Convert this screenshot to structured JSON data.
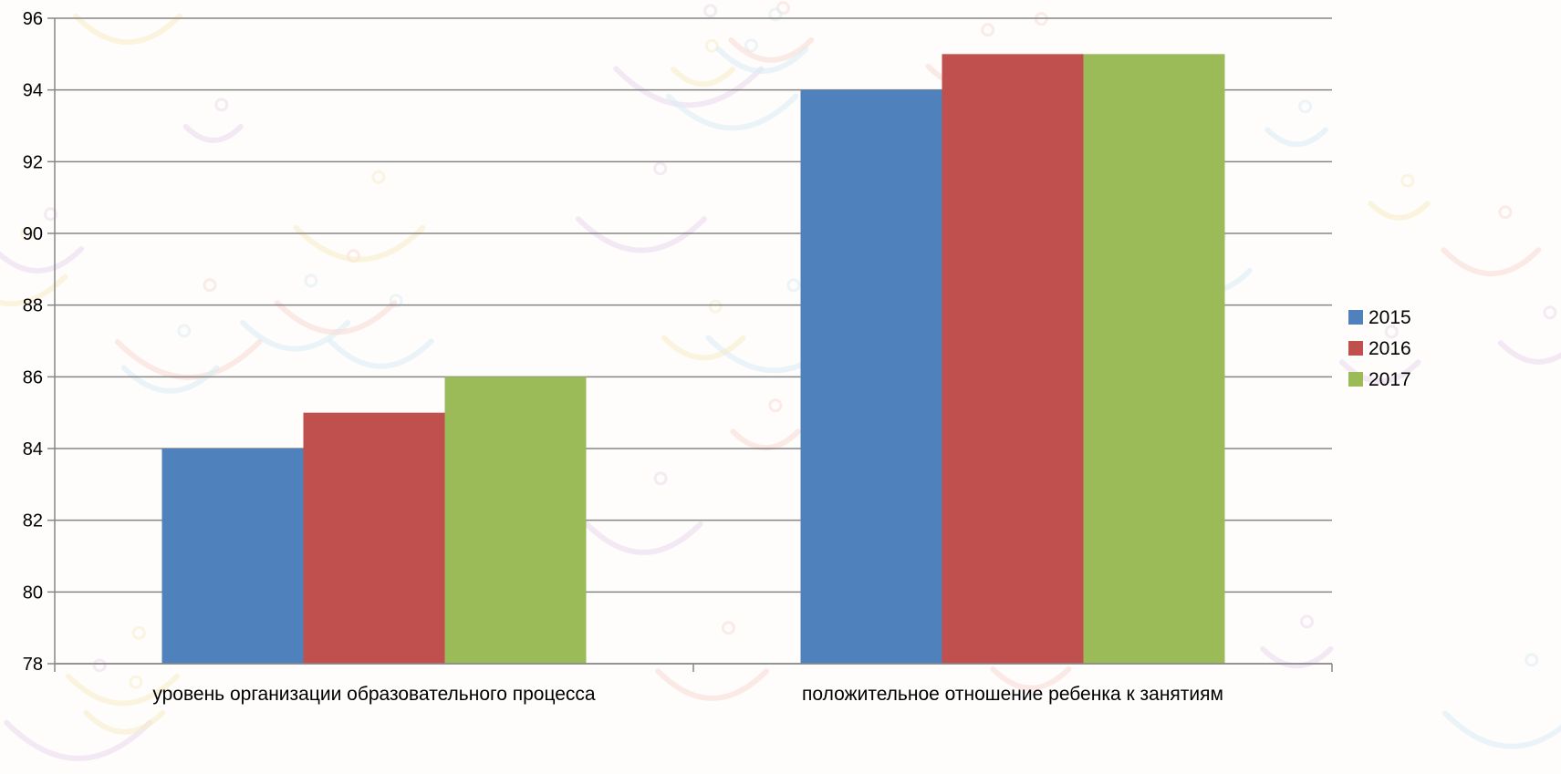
{
  "chart_data": {
    "type": "bar",
    "title": "",
    "xlabel": "",
    "ylabel": "",
    "categories": [
      "уровень организации образовательного процесса",
      "положительное отношение ребенка  к занятиям"
    ],
    "series": [
      {
        "name": "2015",
        "values": [
          84,
          94
        ],
        "color": "#4f81bd"
      },
      {
        "name": "2016",
        "values": [
          85,
          95
        ],
        "color": "#c0504d"
      },
      {
        "name": "2017",
        "values": [
          86,
          95
        ],
        "color": "#9bbb59"
      }
    ],
    "ylim": [
      78,
      96
    ],
    "yticks": [
      "78",
      "80",
      "82",
      "84",
      "86",
      "88",
      "90",
      "92",
      "94",
      "96"
    ],
    "grid": true,
    "legend_position": "right",
    "gridline_color": "#868686",
    "background_pattern": "faint decorative doodles"
  }
}
